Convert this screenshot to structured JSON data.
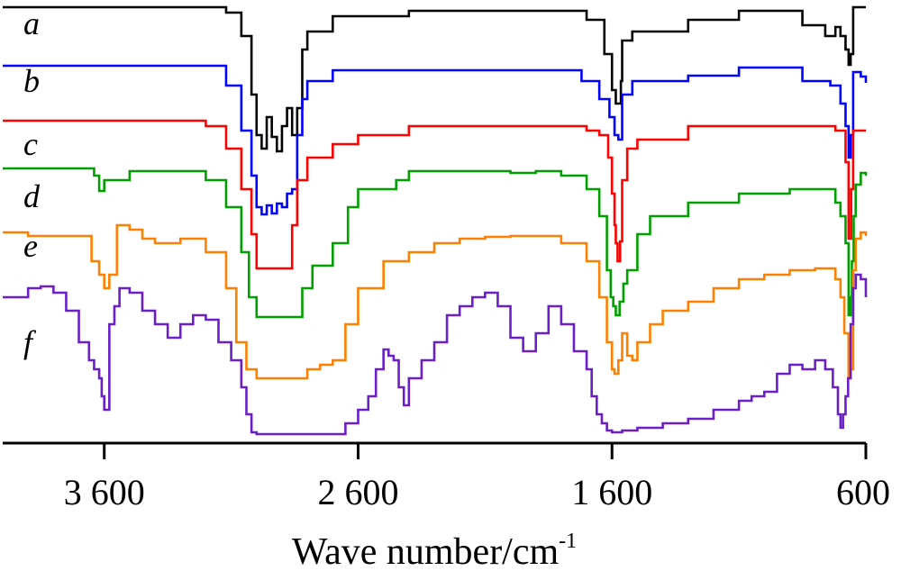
{
  "chart_data": {
    "type": "line",
    "xlabel": "Wave number/cm",
    "xlabel_superscript": "-1",
    "xlim": [
      4000,
      600
    ],
    "x_reversed": true,
    "y_axis_visible": false,
    "grid": false,
    "x_ticks": [
      3600,
      2600,
      1600,
      600
    ],
    "x_tick_labels": [
      "3 600",
      "2 600",
      "1 600",
      "600"
    ],
    "series": [
      {
        "name": "a",
        "color": "#000000",
        "offset": 0,
        "points": [
          [
            4000,
            8
          ],
          [
            3700,
            8
          ],
          [
            3200,
            8
          ],
          [
            3120,
            14
          ],
          [
            3060,
            40
          ],
          [
            3020,
            105
          ],
          [
            3000,
            150
          ],
          [
            2980,
            165
          ],
          [
            2960,
            130
          ],
          [
            2940,
            152
          ],
          [
            2920,
            168
          ],
          [
            2900,
            140
          ],
          [
            2880,
            120
          ],
          [
            2860,
            150
          ],
          [
            2840,
            120
          ],
          [
            2820,
            55
          ],
          [
            2800,
            35
          ],
          [
            2700,
            18
          ],
          [
            2400,
            12
          ],
          [
            2000,
            12
          ],
          [
            1700,
            22
          ],
          [
            1630,
            60
          ],
          [
            1600,
            100
          ],
          [
            1585,
            115
          ],
          [
            1565,
            90
          ],
          [
            1560,
            45
          ],
          [
            1520,
            35
          ],
          [
            1300,
            22
          ],
          [
            1100,
            12
          ],
          [
            850,
            28
          ],
          [
            760,
            40
          ],
          [
            720,
            30
          ],
          [
            700,
            40
          ],
          [
            680,
            55
          ],
          [
            668,
            72
          ],
          [
            660,
            60
          ],
          [
            650,
            8
          ],
          [
            600,
            8
          ]
        ]
      },
      {
        "name": "b",
        "color": "#0000ff",
        "offset": 0,
        "points": [
          [
            4000,
            73
          ],
          [
            3600,
            73
          ],
          [
            3200,
            73
          ],
          [
            3120,
            95
          ],
          [
            3060,
            145
          ],
          [
            3020,
            195
          ],
          [
            3000,
            230
          ],
          [
            2980,
            238
          ],
          [
            2960,
            228
          ],
          [
            2940,
            237
          ],
          [
            2920,
            226
          ],
          [
            2900,
            230
          ],
          [
            2880,
            215
          ],
          [
            2860,
            210
          ],
          [
            2840,
            150
          ],
          [
            2820,
            110
          ],
          [
            2800,
            90
          ],
          [
            2700,
            78
          ],
          [
            2400,
            78
          ],
          [
            2000,
            78
          ],
          [
            1720,
            90
          ],
          [
            1650,
            110
          ],
          [
            1610,
            130
          ],
          [
            1590,
            150
          ],
          [
            1575,
            155
          ],
          [
            1560,
            105
          ],
          [
            1520,
            90
          ],
          [
            1300,
            84
          ],
          [
            1100,
            75
          ],
          [
            850,
            90
          ],
          [
            740,
            95
          ],
          [
            700,
            115
          ],
          [
            680,
            140
          ],
          [
            668,
            175
          ],
          [
            660,
            150
          ],
          [
            650,
            80
          ],
          [
            620,
            85
          ],
          [
            600,
            92
          ]
        ]
      },
      {
        "name": "c",
        "color": "#ff0000",
        "offset": 0,
        "points": [
          [
            4000,
            134
          ],
          [
            3600,
            134
          ],
          [
            3300,
            134
          ],
          [
            3200,
            140
          ],
          [
            3120,
            165
          ],
          [
            3060,
            210
          ],
          [
            3020,
            260
          ],
          [
            3000,
            298
          ],
          [
            2900,
            298
          ],
          [
            2860,
            250
          ],
          [
            2840,
            200
          ],
          [
            2800,
            175
          ],
          [
            2700,
            160
          ],
          [
            2600,
            150
          ],
          [
            2400,
            140
          ],
          [
            2000,
            140
          ],
          [
            1700,
            145
          ],
          [
            1650,
            150
          ],
          [
            1615,
            175
          ],
          [
            1600,
            215
          ],
          [
            1590,
            250
          ],
          [
            1585,
            270
          ],
          [
            1578,
            290
          ],
          [
            1568,
            268
          ],
          [
            1560,
            200
          ],
          [
            1540,
            165
          ],
          [
            1500,
            155
          ],
          [
            1300,
            140
          ],
          [
            1000,
            140
          ],
          [
            720,
            145
          ],
          [
            680,
            180
          ],
          [
            668,
            265
          ],
          [
            658,
            210
          ],
          [
            650,
            145
          ],
          [
            600,
            145
          ]
        ]
      },
      {
        "name": "d",
        "color": "#00a000",
        "offset": 0,
        "points": [
          [
            4000,
            187
          ],
          [
            3800,
            187
          ],
          [
            3640,
            195
          ],
          [
            3620,
            212
          ],
          [
            3600,
            200
          ],
          [
            3500,
            190
          ],
          [
            3300,
            190
          ],
          [
            3200,
            200
          ],
          [
            3120,
            230
          ],
          [
            3060,
            280
          ],
          [
            3030,
            330
          ],
          [
            3000,
            352
          ],
          [
            2860,
            352
          ],
          [
            2820,
            320
          ],
          [
            2780,
            295
          ],
          [
            2700,
            270
          ],
          [
            2640,
            230
          ],
          [
            2600,
            210
          ],
          [
            2450,
            200
          ],
          [
            2400,
            190
          ],
          [
            2200,
            190
          ],
          [
            2000,
            192
          ],
          [
            1900,
            190
          ],
          [
            1800,
            195
          ],
          [
            1700,
            210
          ],
          [
            1650,
            240
          ],
          [
            1620,
            300
          ],
          [
            1605,
            330
          ],
          [
            1595,
            340
          ],
          [
            1585,
            350
          ],
          [
            1570,
            335
          ],
          [
            1555,
            315
          ],
          [
            1540,
            300
          ],
          [
            1500,
            260
          ],
          [
            1450,
            240
          ],
          [
            1300,
            225
          ],
          [
            1100,
            215
          ],
          [
            900,
            210
          ],
          [
            750,
            210
          ],
          [
            720,
            225
          ],
          [
            700,
            240
          ],
          [
            680,
            270
          ],
          [
            668,
            350
          ],
          [
            660,
            330
          ],
          [
            655,
            290
          ],
          [
            648,
            240
          ],
          [
            640,
            205
          ],
          [
            620,
            192
          ],
          [
            600,
            195
          ]
        ]
      },
      {
        "name": "e",
        "color": "#ff8000",
        "offset": 0,
        "points": [
          [
            4000,
            258
          ],
          [
            3900,
            262
          ],
          [
            3700,
            262
          ],
          [
            3650,
            290
          ],
          [
            3620,
            305
          ],
          [
            3600,
            320
          ],
          [
            3580,
            305
          ],
          [
            3550,
            250
          ],
          [
            3500,
            255
          ],
          [
            3450,
            265
          ],
          [
            3400,
            270
          ],
          [
            3300,
            265
          ],
          [
            3200,
            280
          ],
          [
            3120,
            320
          ],
          [
            3080,
            380
          ],
          [
            3040,
            410
          ],
          [
            3000,
            420
          ],
          [
            2850,
            420
          ],
          [
            2800,
            410
          ],
          [
            2750,
            405
          ],
          [
            2700,
            400
          ],
          [
            2650,
            360
          ],
          [
            2600,
            320
          ],
          [
            2500,
            290
          ],
          [
            2400,
            280
          ],
          [
            2300,
            270
          ],
          [
            2200,
            265
          ],
          [
            2100,
            263
          ],
          [
            2000,
            262
          ],
          [
            1900,
            262
          ],
          [
            1800,
            270
          ],
          [
            1700,
            290
          ],
          [
            1650,
            330
          ],
          [
            1620,
            380
          ],
          [
            1600,
            410
          ],
          [
            1590,
            415
          ],
          [
            1575,
            400
          ],
          [
            1560,
            370
          ],
          [
            1540,
            395
          ],
          [
            1520,
            400
          ],
          [
            1500,
            380
          ],
          [
            1450,
            360
          ],
          [
            1400,
            345
          ],
          [
            1300,
            335
          ],
          [
            1200,
            320
          ],
          [
            1100,
            310
          ],
          [
            1000,
            305
          ],
          [
            900,
            300
          ],
          [
            800,
            298
          ],
          [
            720,
            310
          ],
          [
            700,
            330
          ],
          [
            685,
            370
          ],
          [
            668,
            420
          ],
          [
            660,
            410
          ],
          [
            650,
            300
          ],
          [
            640,
            265
          ],
          [
            620,
            258
          ],
          [
            600,
            262
          ]
        ]
      },
      {
        "name": "f",
        "color": "#6a1fc8",
        "offset": 0,
        "points": [
          [
            4000,
            330
          ],
          [
            3950,
            330
          ],
          [
            3900,
            320
          ],
          [
            3850,
            318
          ],
          [
            3800,
            325
          ],
          [
            3750,
            345
          ],
          [
            3700,
            380
          ],
          [
            3660,
            400
          ],
          [
            3640,
            410
          ],
          [
            3620,
            420
          ],
          [
            3610,
            440
          ],
          [
            3600,
            455
          ],
          [
            3580,
            360
          ],
          [
            3560,
            340
          ],
          [
            3540,
            320
          ],
          [
            3500,
            325
          ],
          [
            3450,
            345
          ],
          [
            3400,
            360
          ],
          [
            3350,
            375
          ],
          [
            3300,
            360
          ],
          [
            3250,
            350
          ],
          [
            3200,
            355
          ],
          [
            3150,
            380
          ],
          [
            3100,
            400
          ],
          [
            3060,
            430
          ],
          [
            3040,
            460
          ],
          [
            3020,
            480
          ],
          [
            3000,
            482
          ],
          [
            2700,
            482
          ],
          [
            2650,
            470
          ],
          [
            2600,
            455
          ],
          [
            2560,
            440
          ],
          [
            2530,
            410
          ],
          [
            2500,
            388
          ],
          [
            2480,
            395
          ],
          [
            2460,
            400
          ],
          [
            2440,
            430
          ],
          [
            2420,
            450
          ],
          [
            2400,
            420
          ],
          [
            2350,
            400
          ],
          [
            2300,
            380
          ],
          [
            2250,
            350
          ],
          [
            2200,
            340
          ],
          [
            2150,
            330
          ],
          [
            2100,
            325
          ],
          [
            2050,
            340
          ],
          [
            2000,
            375
          ],
          [
            1950,
            390
          ],
          [
            1900,
            370
          ],
          [
            1850,
            340
          ],
          [
            1800,
            360
          ],
          [
            1750,
            390
          ],
          [
            1700,
            410
          ],
          [
            1680,
            440
          ],
          [
            1660,
            460
          ],
          [
            1640,
            470
          ],
          [
            1620,
            478
          ],
          [
            1600,
            480
          ],
          [
            1560,
            478
          ],
          [
            1500,
            475
          ],
          [
            1400,
            470
          ],
          [
            1300,
            465
          ],
          [
            1200,
            455
          ],
          [
            1100,
            445
          ],
          [
            1050,
            440
          ],
          [
            1000,
            435
          ],
          [
            950,
            415
          ],
          [
            900,
            405
          ],
          [
            850,
            410
          ],
          [
            800,
            400
          ],
          [
            760,
            410
          ],
          [
            730,
            430
          ],
          [
            710,
            460
          ],
          [
            700,
            475
          ],
          [
            690,
            460
          ],
          [
            680,
            440
          ],
          [
            670,
            420
          ],
          [
            660,
            360
          ],
          [
            650,
            320
          ],
          [
            640,
            305
          ],
          [
            620,
            310
          ],
          [
            600,
            330
          ]
        ]
      }
    ]
  }
}
